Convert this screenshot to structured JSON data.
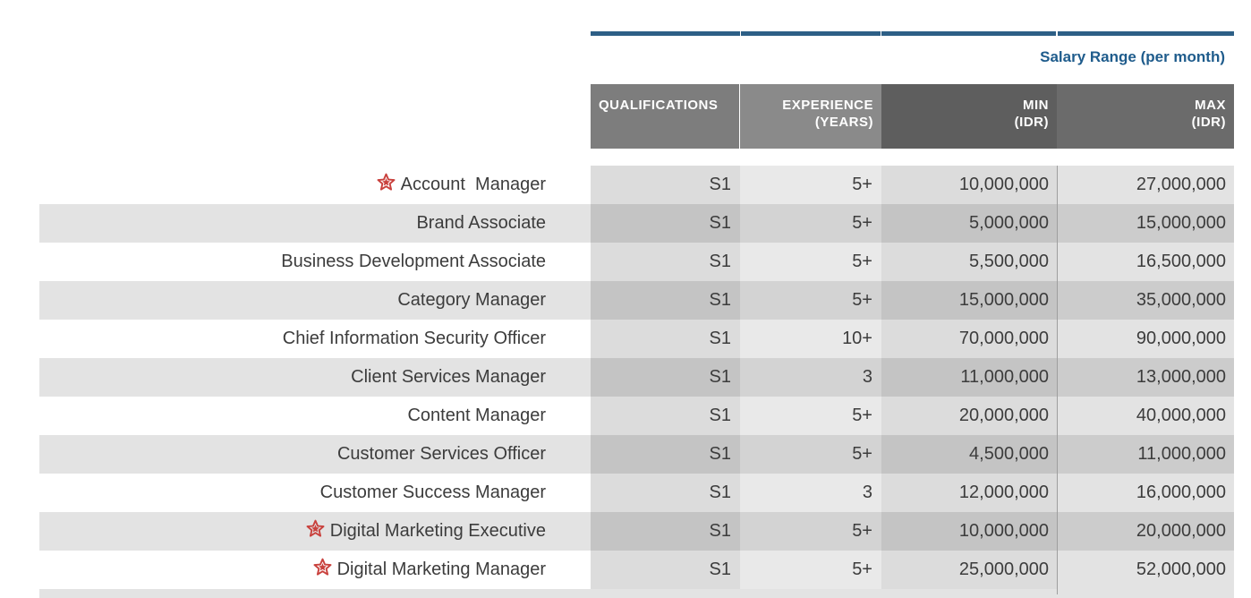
{
  "header": {
    "salary_range_title": "Salary Range (per month)",
    "columns": {
      "qualifications": "QUALIFICATIONS",
      "experience_line1": "EXPERIENCE",
      "experience_line2": "(YEARS)",
      "min_line1": "MIN",
      "min_line2": "(IDR)",
      "max_line1": "MAX",
      "max_line2": "(IDR)"
    }
  },
  "colors": {
    "accent_bar": "#2d5f86",
    "title_blue": "#1f5c8c",
    "star_red": "#c9413d"
  },
  "rows": [
    {
      "title": "Account  Manager",
      "starred": true,
      "qualification": "S1",
      "experience": "5+",
      "min": "10,000,000",
      "max": "27,000,000"
    },
    {
      "title": "Brand Associate",
      "starred": false,
      "qualification": "S1",
      "experience": "5+",
      "min": "5,000,000",
      "max": "15,000,000"
    },
    {
      "title": "Business Development Associate",
      "starred": false,
      "qualification": "S1",
      "experience": "5+",
      "min": "5,500,000",
      "max": "16,500,000"
    },
    {
      "title": "Category Manager",
      "starred": false,
      "qualification": "S1",
      "experience": "5+",
      "min": "15,000,000",
      "max": "35,000,000"
    },
    {
      "title": "Chief Information Security Officer",
      "starred": false,
      "qualification": "S1",
      "experience": "10+",
      "min": "70,000,000",
      "max": "90,000,000"
    },
    {
      "title": "Client Services Manager",
      "starred": false,
      "qualification": "S1",
      "experience": "3",
      "min": "11,000,000",
      "max": "13,000,000"
    },
    {
      "title": "Content Manager",
      "starred": false,
      "qualification": "S1",
      "experience": "5+",
      "min": "20,000,000",
      "max": "40,000,000"
    },
    {
      "title": "Customer Services Officer",
      "starred": false,
      "qualification": "S1",
      "experience": "5+",
      "min": "4,500,000",
      "max": "11,000,000"
    },
    {
      "title": "Customer Success Manager",
      "starred": false,
      "qualification": "S1",
      "experience": "3",
      "min": "12,000,000",
      "max": "16,000,000"
    },
    {
      "title": "Digital Marketing Executive",
      "starred": true,
      "qualification": "S1",
      "experience": "5+",
      "min": "10,000,000",
      "max": "20,000,000"
    },
    {
      "title": "Digital Marketing Manager",
      "starred": true,
      "qualification": "S1",
      "experience": "5+",
      "min": "25,000,000",
      "max": "52,000,000"
    }
  ]
}
